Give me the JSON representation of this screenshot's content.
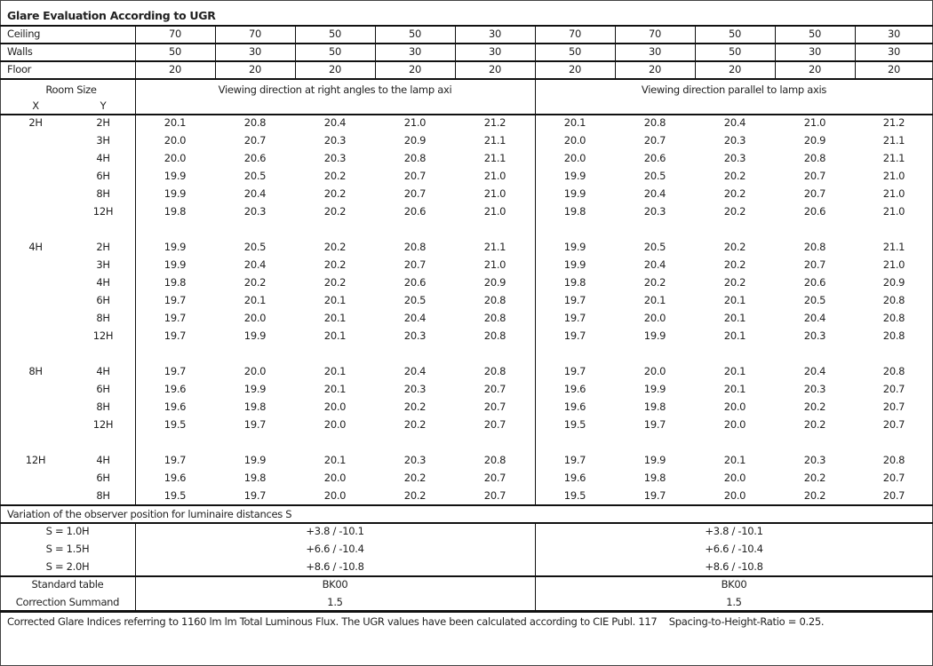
{
  "title": "Glare Evaluation According to UGR",
  "reflectances": {
    "ceiling": {
      "label": "Ceiling",
      "values": [
        "70",
        "70",
        "50",
        "50",
        "30",
        "70",
        "70",
        "50",
        "50",
        "30"
      ]
    },
    "walls": {
      "label": "Walls",
      "values": [
        "50",
        "30",
        "50",
        "30",
        "30",
        "50",
        "30",
        "50",
        "30",
        "30"
      ]
    },
    "floor": {
      "label": "Floor",
      "values": [
        "20",
        "20",
        "20",
        "20",
        "20",
        "20",
        "20",
        "20",
        "20",
        "20"
      ]
    }
  },
  "header": {
    "room_size": "Room Size",
    "x": "X",
    "y": "Y",
    "perpendicular": "Viewing direction at right angles to the lamp axi",
    "parallel": "Viewing direction parallel to lamp axis"
  },
  "groups": [
    {
      "x": "2H",
      "rows": [
        {
          "y": "2H",
          "perp": [
            "20.1",
            "20.8",
            "20.4",
            "21.0",
            "21.2"
          ],
          "par": [
            "20.1",
            "20.8",
            "20.4",
            "21.0",
            "21.2"
          ]
        },
        {
          "y": "3H",
          "perp": [
            "20.0",
            "20.7",
            "20.3",
            "20.9",
            "21.1"
          ],
          "par": [
            "20.0",
            "20.7",
            "20.3",
            "20.9",
            "21.1"
          ]
        },
        {
          "y": "4H",
          "perp": [
            "20.0",
            "20.6",
            "20.3",
            "20.8",
            "21.1"
          ],
          "par": [
            "20.0",
            "20.6",
            "20.3",
            "20.8",
            "21.1"
          ]
        },
        {
          "y": "6H",
          "perp": [
            "19.9",
            "20.5",
            "20.2",
            "20.7",
            "21.0"
          ],
          "par": [
            "19.9",
            "20.5",
            "20.2",
            "20.7",
            "21.0"
          ]
        },
        {
          "y": "8H",
          "perp": [
            "19.9",
            "20.4",
            "20.2",
            "20.7",
            "21.0"
          ],
          "par": [
            "19.9",
            "20.4",
            "20.2",
            "20.7",
            "21.0"
          ]
        },
        {
          "y": "12H",
          "perp": [
            "19.8",
            "20.3",
            "20.2",
            "20.6",
            "21.0"
          ],
          "par": [
            "19.8",
            "20.3",
            "20.2",
            "20.6",
            "21.0"
          ]
        }
      ]
    },
    {
      "x": "4H",
      "rows": [
        {
          "y": "2H",
          "perp": [
            "19.9",
            "20.5",
            "20.2",
            "20.8",
            "21.1"
          ],
          "par": [
            "19.9",
            "20.5",
            "20.2",
            "20.8",
            "21.1"
          ]
        },
        {
          "y": "3H",
          "perp": [
            "19.9",
            "20.4",
            "20.2",
            "20.7",
            "21.0"
          ],
          "par": [
            "19.9",
            "20.4",
            "20.2",
            "20.7",
            "21.0"
          ]
        },
        {
          "y": "4H",
          "perp": [
            "19.8",
            "20.2",
            "20.2",
            "20.6",
            "20.9"
          ],
          "par": [
            "19.8",
            "20.2",
            "20.2",
            "20.6",
            "20.9"
          ]
        },
        {
          "y": "6H",
          "perp": [
            "19.7",
            "20.1",
            "20.1",
            "20.5",
            "20.8"
          ],
          "par": [
            "19.7",
            "20.1",
            "20.1",
            "20.5",
            "20.8"
          ]
        },
        {
          "y": "8H",
          "perp": [
            "19.7",
            "20.0",
            "20.1",
            "20.4",
            "20.8"
          ],
          "par": [
            "19.7",
            "20.0",
            "20.1",
            "20.4",
            "20.8"
          ]
        },
        {
          "y": "12H",
          "perp": [
            "19.7",
            "19.9",
            "20.1",
            "20.3",
            "20.8"
          ],
          "par": [
            "19.7",
            "19.9",
            "20.1",
            "20.3",
            "20.8"
          ]
        }
      ]
    },
    {
      "x": "8H",
      "rows": [
        {
          "y": "4H",
          "perp": [
            "19.7",
            "20.0",
            "20.1",
            "20.4",
            "20.8"
          ],
          "par": [
            "19.7",
            "20.0",
            "20.1",
            "20.4",
            "20.8"
          ]
        },
        {
          "y": "6H",
          "perp": [
            "19.6",
            "19.9",
            "20.1",
            "20.3",
            "20.7"
          ],
          "par": [
            "19.6",
            "19.9",
            "20.1",
            "20.3",
            "20.7"
          ]
        },
        {
          "y": "8H",
          "perp": [
            "19.6",
            "19.8",
            "20.0",
            "20.2",
            "20.7"
          ],
          "par": [
            "19.6",
            "19.8",
            "20.0",
            "20.2",
            "20.7"
          ]
        },
        {
          "y": "12H",
          "perp": [
            "19.5",
            "19.7",
            "20.0",
            "20.2",
            "20.7"
          ],
          "par": [
            "19.5",
            "19.7",
            "20.0",
            "20.2",
            "20.7"
          ]
        }
      ]
    },
    {
      "x": "12H",
      "rows": [
        {
          "y": "4H",
          "perp": [
            "19.7",
            "19.9",
            "20.1",
            "20.3",
            "20.8"
          ],
          "par": [
            "19.7",
            "19.9",
            "20.1",
            "20.3",
            "20.8"
          ]
        },
        {
          "y": "6H",
          "perp": [
            "19.6",
            "19.8",
            "20.0",
            "20.2",
            "20.7"
          ],
          "par": [
            "19.6",
            "19.8",
            "20.0",
            "20.2",
            "20.7"
          ]
        },
        {
          "y": "8H",
          "perp": [
            "19.5",
            "19.7",
            "20.0",
            "20.2",
            "20.7"
          ],
          "par": [
            "19.5",
            "19.7",
            "20.0",
            "20.2",
            "20.7"
          ]
        }
      ]
    }
  ],
  "variation": {
    "label": "Variation of the observer position for luminaire distances S",
    "rows": [
      {
        "s": "S = 1.0H",
        "perp": "+3.8 / -10.1",
        "par": "+3.8 / -10.1"
      },
      {
        "s": "S = 1.5H",
        "perp": "+6.6 / -10.4",
        "par": "+6.6 / -10.4"
      },
      {
        "s": "S = 2.0H",
        "perp": "+8.6 / -10.8",
        "par": "+8.6 / -10.8"
      }
    ]
  },
  "standard": {
    "table_label": "Standard table",
    "table_perp": "BK00",
    "table_par": "BK00",
    "correction_label": "Correction Summand",
    "correction_perp": "1.5",
    "correction_par": "1.5"
  },
  "footnote": "Corrected Glare Indices referring to 1160 lm lm Total Luminous Flux. The UGR values have been calculated according to CIE Publ. 117    Spacing-to-Height-Ratio = 0.25."
}
